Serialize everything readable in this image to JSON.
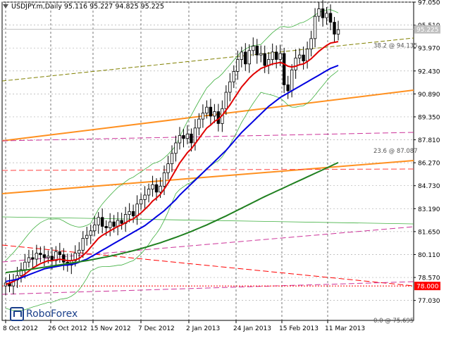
{
  "window": {
    "title": "USDJPY.m,Daily  95.116 95.227 94.825 95.225"
  },
  "brand": {
    "name": "RoboForex"
  },
  "chart_data": {
    "type": "candlestick",
    "symbol": "USDJPY.m",
    "timeframe": "Daily",
    "ohlc_last": {
      "open": 95.116,
      "high": 95.227,
      "low": 94.825,
      "close": 95.225
    },
    "ylim": [
      75.69,
      97.05
    ],
    "y_ticks": [
      "97.050",
      "95.510",
      "93.970",
      "92.430",
      "90.890",
      "89.350",
      "87.810",
      "86.270",
      "84.730",
      "83.190",
      "81.650",
      "80.110",
      "78.570",
      "77.030"
    ],
    "y_tick_values": [
      97.05,
      95.51,
      93.97,
      92.43,
      90.89,
      89.35,
      87.81,
      86.27,
      84.73,
      83.19,
      81.65,
      80.11,
      78.57,
      77.03
    ],
    "x_ticks": [
      "8 Oct 2012",
      "26 Oct 2012",
      "15 Nov 2012",
      "7 Dec 2012",
      "2 Jan 2013",
      "24 Jan 2013",
      "15 Feb 2013",
      "11 Mar 2013"
    ],
    "x_tick_dates": [
      "2012-10-08",
      "2012-10-26",
      "2012-11-15",
      "2012-12-07",
      "2013-01-02",
      "2013-01-24",
      "2013-02-15",
      "2013-03-11"
    ],
    "price_labels": [
      {
        "text": "95.225",
        "value": 95.225,
        "bg": "#c0c0c0",
        "fg": "#ffffff"
      },
      {
        "text": "78.000",
        "value": 78.0,
        "bg": "#ff0000",
        "fg": "#ffffff"
      }
    ],
    "fib_labels": [
      {
        "text": "38.2 @ 94.135",
        "value": 94.135
      },
      {
        "text": "23.6 @ 87.087",
        "value": 87.087
      },
      {
        "text": "0.0 @ 75.695",
        "value": 75.695
      }
    ],
    "candles_close": [
      78.2,
      78.0,
      78.4,
      78.7,
      79.1,
      79.6,
      79.9,
      79.8,
      80.2,
      80.1,
      79.9,
      80.0,
      79.7,
      80.3,
      80.1,
      79.6,
      79.4,
      79.7,
      80.2,
      80.4,
      81.2,
      81.4,
      81.7,
      82.1,
      82.6,
      82.0,
      81.9,
      82.3,
      82.0,
      82.4,
      82.2,
      82.8,
      83.0,
      82.7,
      83.5,
      83.8,
      84.1,
      84.5,
      84.8,
      84.3,
      84.7,
      85.6,
      86.2,
      86.9,
      87.6,
      88.1,
      87.9,
      88.2,
      87.6,
      88.6,
      89.2,
      89.6,
      90.0,
      89.4,
      89.7,
      88.9,
      89.9,
      91.0,
      91.7,
      92.4,
      93.2,
      93.7,
      92.9,
      93.8,
      94.1,
      93.5,
      93.6,
      92.8,
      93.2,
      93.7,
      93.2,
      93.6,
      91.5,
      91.1,
      92.5,
      93.3,
      93.5,
      93.1,
      93.9,
      94.6,
      96.1,
      96.6,
      96.0,
      96.3,
      95.7,
      94.9,
      95.2
    ],
    "series": [
      {
        "name": "MA fast",
        "color": "#e00000",
        "values": [
          78.1,
          78.2,
          78.3,
          78.45,
          78.6,
          78.8,
          79.0,
          79.2,
          79.35,
          79.5,
          79.6,
          79.7,
          79.7,
          79.75,
          79.8,
          79.75,
          79.7,
          79.7,
          79.75,
          79.85,
          80.05,
          80.3,
          80.6,
          80.9,
          81.2,
          81.4,
          81.55,
          81.7,
          81.85,
          82.0,
          82.1,
          82.25,
          82.4,
          82.5,
          82.7,
          82.9,
          83.15,
          83.4,
          83.7,
          83.9,
          84.15,
          84.5,
          84.9,
          85.35,
          85.8,
          86.25,
          86.6,
          86.95,
          87.2,
          87.55,
          87.9,
          88.25,
          88.6,
          88.8,
          89.05,
          89.2,
          89.45,
          89.8,
          90.15,
          90.55,
          90.95,
          91.35,
          91.65,
          91.95,
          92.2,
          92.4,
          92.6,
          92.7,
          92.8,
          92.9,
          92.95,
          93.0,
          92.9,
          92.75,
          92.7,
          92.75,
          92.85,
          92.9,
          93.05,
          93.25,
          93.5,
          93.75,
          93.95,
          94.15,
          94.3,
          94.35,
          94.4
        ]
      },
      {
        "name": "MA medium",
        "color": "#0000e0",
        "values": [
          78.3,
          78.35,
          78.4,
          78.45,
          78.55,
          78.65,
          78.75,
          78.85,
          78.95,
          79.05,
          79.15,
          79.2,
          79.25,
          79.3,
          79.35,
          79.4,
          79.4,
          79.45,
          79.5,
          79.6,
          79.7,
          79.8,
          79.95,
          80.1,
          80.25,
          80.4,
          80.55,
          80.7,
          80.85,
          81.0,
          81.15,
          81.3,
          81.45,
          81.6,
          81.75,
          81.9,
          82.05,
          82.25,
          82.45,
          82.65,
          82.85,
          83.05,
          83.3,
          83.55,
          83.8,
          84.1,
          84.35,
          84.6,
          84.85,
          85.1,
          85.35,
          85.6,
          85.85,
          86.1,
          86.35,
          86.6,
          86.85,
          87.1,
          87.4,
          87.7,
          88.0,
          88.3,
          88.55,
          88.8,
          89.05,
          89.3,
          89.55,
          89.8,
          90.05,
          90.25,
          90.45,
          90.65,
          90.8,
          90.95,
          91.1,
          91.25,
          91.4,
          91.55,
          91.7,
          91.85,
          92.0,
          92.15,
          92.3,
          92.45,
          92.6,
          92.7,
          92.8
        ]
      },
      {
        "name": "MA slow",
        "color": "#208020",
        "values": [
          78.9,
          78.93,
          78.96,
          79.0,
          79.03,
          79.06,
          79.1,
          79.14,
          79.18,
          79.22,
          79.26,
          79.3,
          79.34,
          79.38,
          79.42,
          79.46,
          79.5,
          79.54,
          79.58,
          79.62,
          79.66,
          79.7,
          79.75,
          79.8,
          79.85,
          79.9,
          79.95,
          80.0,
          80.06,
          80.12,
          80.18,
          80.24,
          80.3,
          80.37,
          80.44,
          80.51,
          80.58,
          80.66,
          80.74,
          80.82,
          80.9,
          80.99,
          81.08,
          81.17,
          81.26,
          81.36,
          81.46,
          81.56,
          81.66,
          81.77,
          81.88,
          81.99,
          82.1,
          82.22,
          82.34,
          82.46,
          82.58,
          82.7,
          82.83,
          82.96,
          83.09,
          83.22,
          83.35,
          83.48,
          83.61,
          83.74,
          83.87,
          84.0,
          84.12,
          84.24,
          84.36,
          84.48,
          84.6,
          84.72,
          84.84,
          84.96,
          85.08,
          85.2,
          85.32,
          85.44,
          85.56,
          85.68,
          85.8,
          85.92,
          86.04,
          86.16,
          86.28
        ]
      }
    ],
    "grid": "dashed",
    "ma_colors": {
      "fast": "#e00000",
      "medium": "#0000e0",
      "slow": "#208020"
    },
    "trend_line_colors": {
      "channel": "#ff9020",
      "support": "#ff0000",
      "fib": "#cc3399",
      "bands": "#40b040",
      "resistance": "#808000"
    }
  }
}
